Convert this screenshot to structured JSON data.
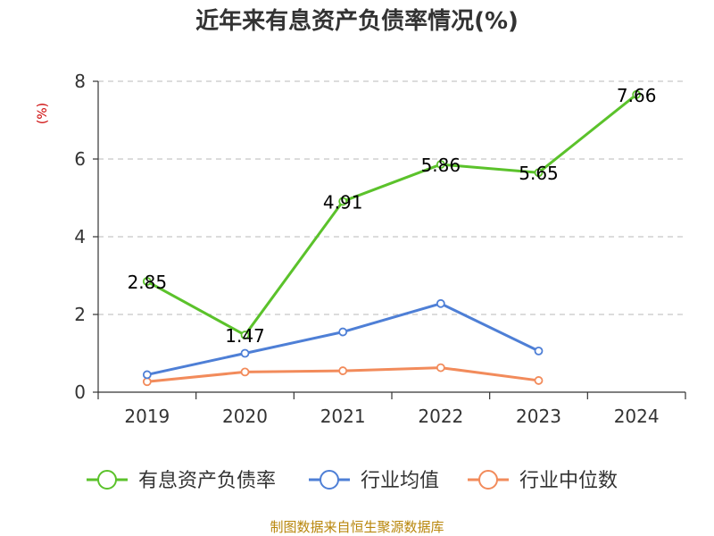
{
  "chart_data": {
    "type": "line",
    "title": "近年来有息资产负债率情况(%)",
    "ylabel": "(%)",
    "xlabel": "",
    "categories": [
      "2019",
      "2020",
      "2021",
      "2022",
      "2023",
      "2024"
    ],
    "ylim": [
      0,
      8
    ],
    "yticks": [
      0,
      2,
      4,
      6,
      8
    ],
    "grid": true,
    "legend_position": "bottom",
    "series": [
      {
        "name": "有息资产负债率",
        "color": "#5bc22b",
        "values": [
          2.85,
          1.47,
          4.91,
          5.86,
          5.65,
          7.66
        ],
        "labels": [
          "2.85",
          "1.47",
          "4.91",
          "5.86",
          "5.65",
          "7.66"
        ]
      },
      {
        "name": "行业均值",
        "color": "#4e7fd6",
        "values": [
          0.45,
          1.0,
          1.55,
          2.28,
          1.06,
          null
        ]
      },
      {
        "name": "行业中位数",
        "color": "#f28b5b",
        "values": [
          0.27,
          0.52,
          0.55,
          0.63,
          0.3,
          null
        ]
      }
    ],
    "source": "制图数据来自恒生聚源数据库"
  }
}
